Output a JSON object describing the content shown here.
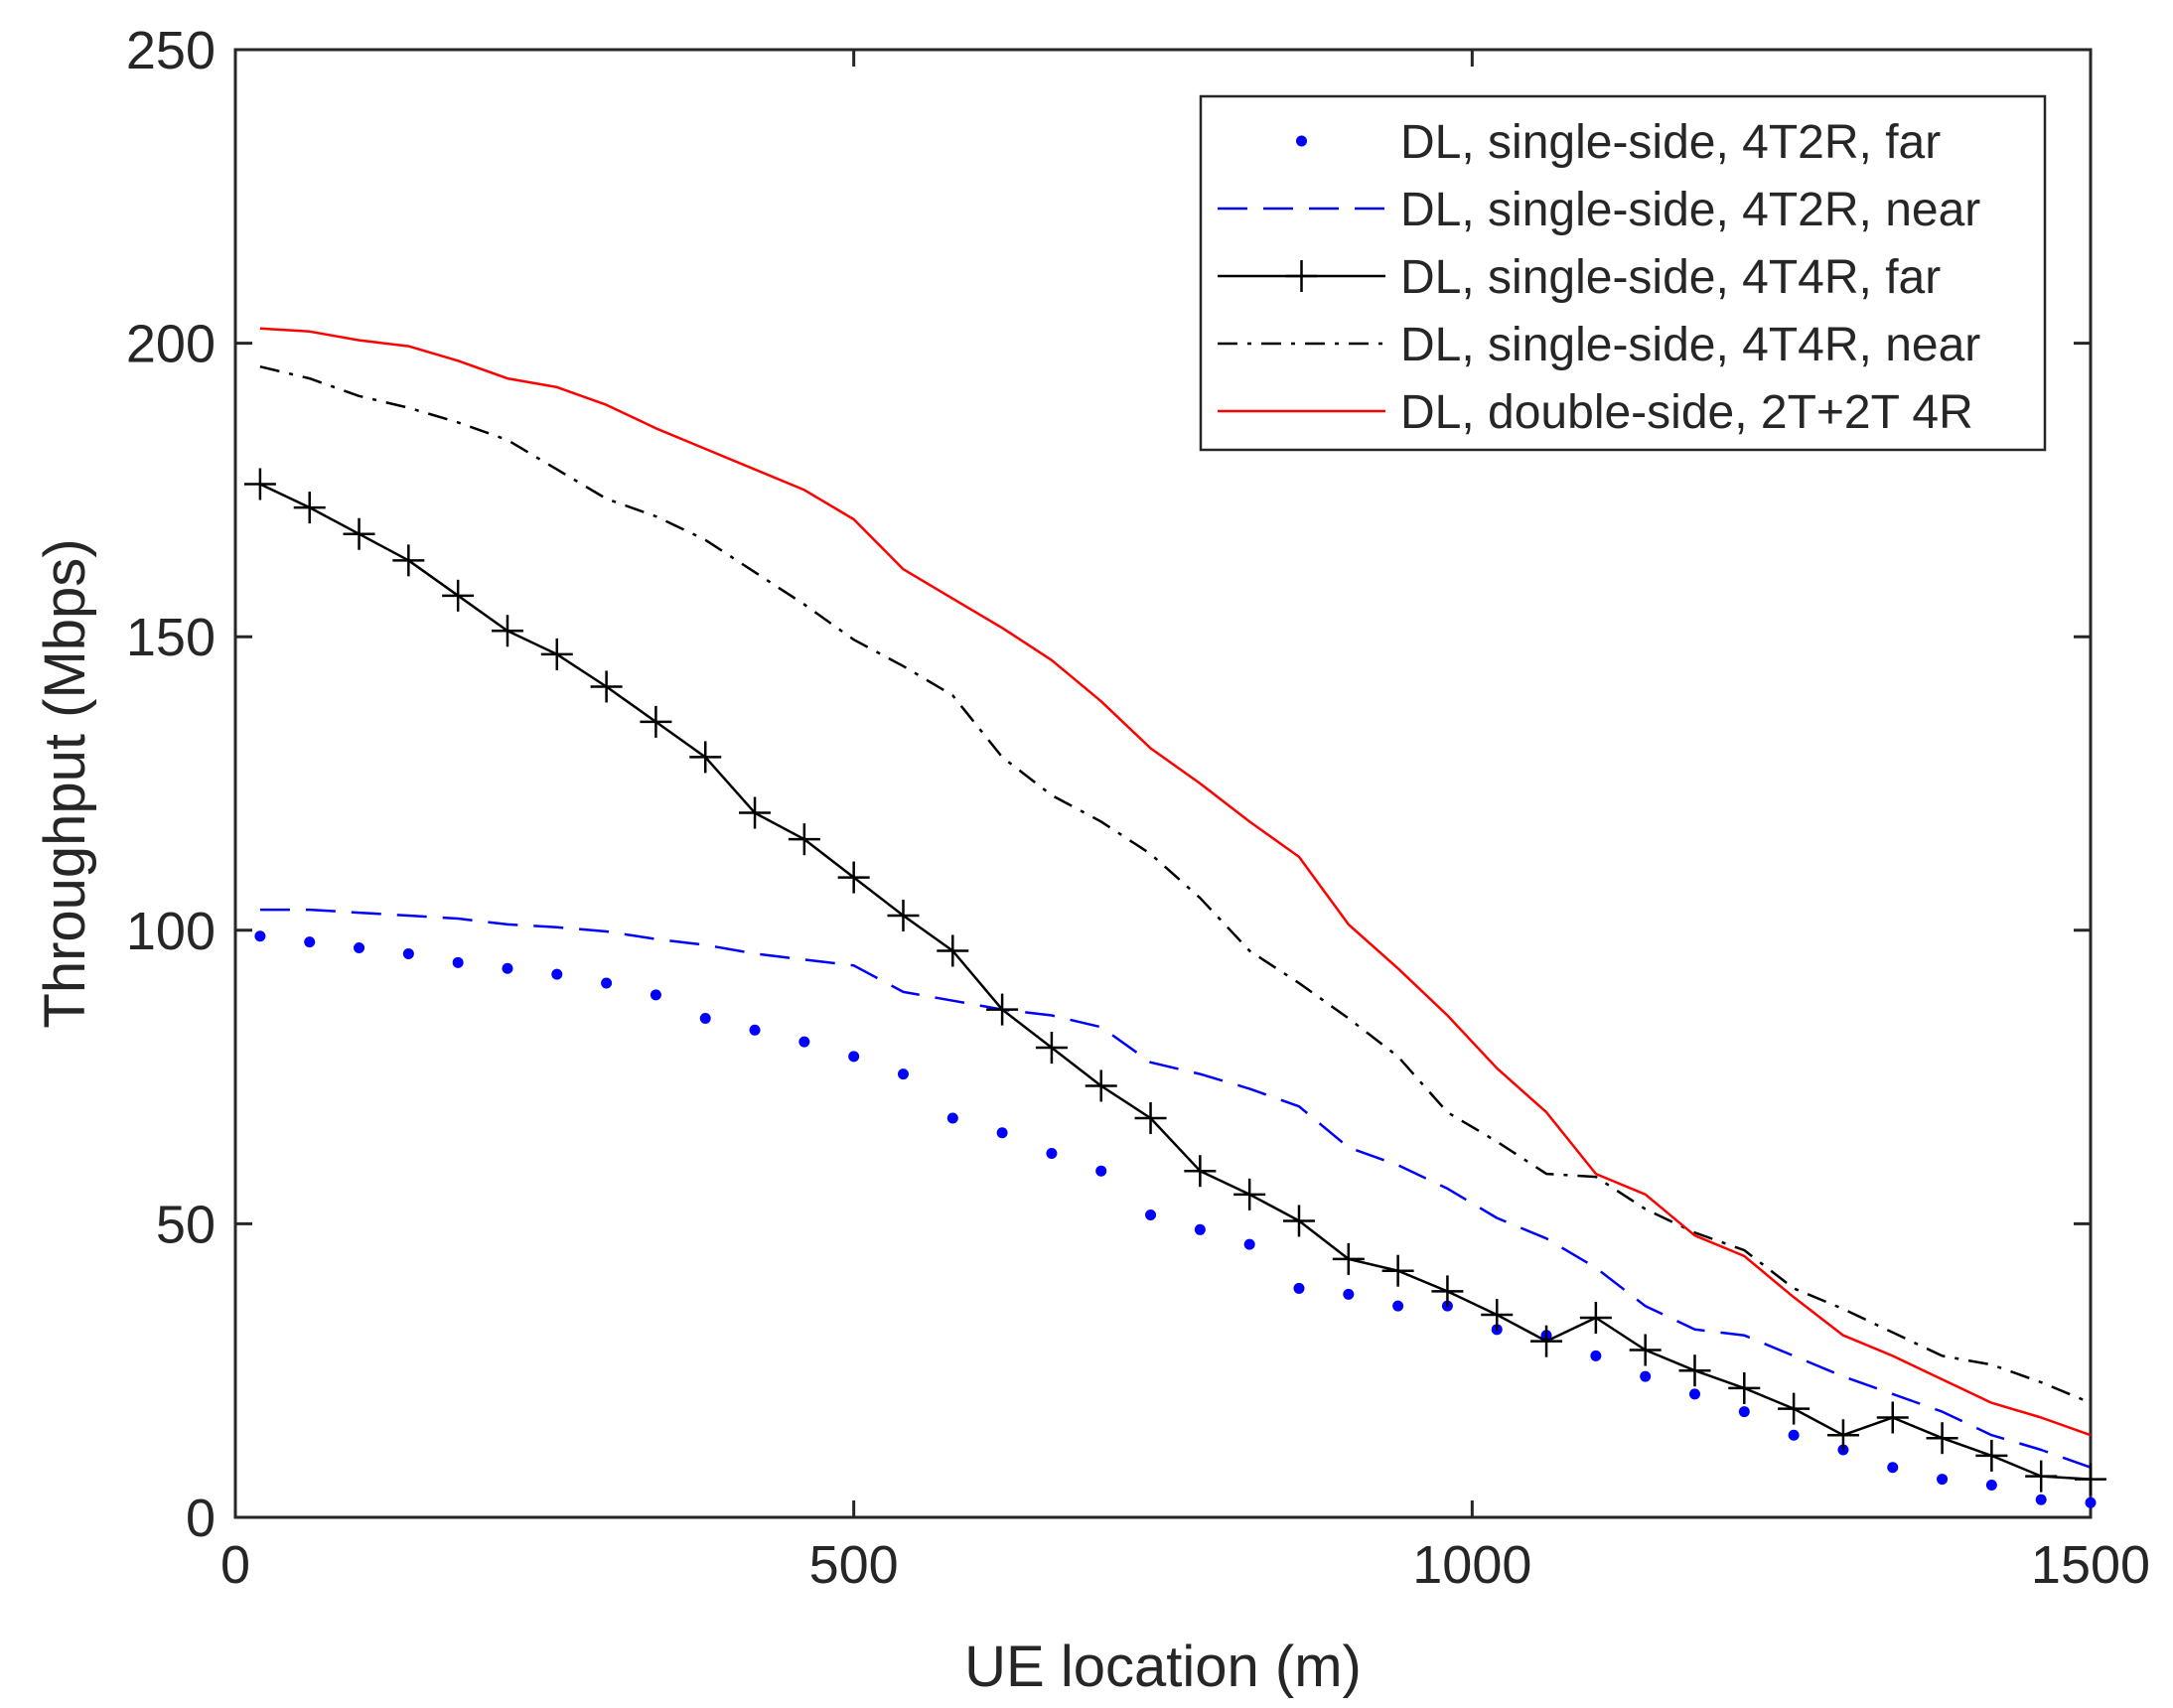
{
  "chart_data": {
    "type": "line",
    "title": "",
    "xlabel": "UE location (m)",
    "ylabel": "Throughput (Mbps)",
    "xlim": [
      0,
      1500
    ],
    "ylim": [
      0,
      250
    ],
    "xticks": [
      0,
      500,
      1000,
      1500
    ],
    "yticks": [
      0,
      50,
      100,
      150,
      200,
      250
    ],
    "grid": false,
    "legend_position": "top-right",
    "series": [
      {
        "name": "DL, single-side, 4T2R, far",
        "color": "#0000ff",
        "style": "dotted-markers",
        "x": [
          20,
          60,
          100,
          140,
          180,
          220,
          260,
          300,
          340,
          380,
          420,
          460,
          500,
          540,
          580,
          620,
          660,
          700,
          740,
          780,
          820,
          860,
          900,
          940,
          980,
          1020,
          1060,
          1100,
          1140,
          1180,
          1220,
          1260,
          1300,
          1340,
          1380,
          1420,
          1460,
          1500
        ],
        "y": [
          99,
          98,
          97,
          96,
          94.5,
          93.5,
          92.5,
          91,
          89,
          85,
          83,
          81,
          78.5,
          75.5,
          68,
          65.5,
          62,
          59,
          51.5,
          49,
          46.5,
          39,
          38,
          36,
          36,
          32,
          31,
          27.5,
          24,
          21,
          18,
          14,
          11.5,
          8.5,
          6.5,
          5.5,
          3,
          2.5
        ]
      },
      {
        "name": "DL, single-side, 4T2R, near",
        "color": "#0000ff",
        "style": "dashed",
        "x": [
          20,
          60,
          100,
          140,
          180,
          220,
          260,
          300,
          340,
          380,
          420,
          460,
          500,
          540,
          580,
          620,
          660,
          700,
          740,
          780,
          820,
          860,
          900,
          940,
          980,
          1020,
          1060,
          1100,
          1140,
          1180,
          1220,
          1260,
          1300,
          1340,
          1380,
          1420,
          1460,
          1500
        ],
        "y": [
          103.5,
          103.5,
          103,
          102.5,
          102,
          101,
          100.5,
          99.8,
          98.5,
          97.5,
          96,
          95,
          94,
          89.5,
          88,
          86.5,
          85.5,
          83.5,
          77.5,
          75.5,
          73,
          70,
          63,
          60,
          56,
          51,
          47.5,
          42.5,
          36,
          32,
          31,
          27.5,
          24,
          21,
          18,
          14,
          11.5,
          8.5
        ]
      },
      {
        "name": "DL, single-side, 4T4R, far",
        "color": "#000000",
        "style": "solid-plus",
        "x": [
          20,
          60,
          100,
          140,
          180,
          220,
          260,
          300,
          340,
          380,
          420,
          460,
          500,
          540,
          580,
          620,
          660,
          700,
          740,
          780,
          820,
          860,
          900,
          940,
          980,
          1020,
          1060,
          1100,
          1140,
          1180,
          1220,
          1260,
          1300,
          1340,
          1380,
          1420,
          1460,
          1500
        ],
        "y": [
          176,
          172,
          167.5,
          163,
          157,
          151,
          147,
          141.5,
          135.5,
          129.5,
          120,
          115.5,
          109,
          102.5,
          96.5,
          86.5,
          80,
          73.5,
          68,
          59,
          55,
          50.5,
          44,
          42,
          38.5,
          34.5,
          30,
          34,
          28.5,
          25,
          22,
          18.5,
          14,
          17,
          13.5,
          10.5,
          7,
          6.5
        ]
      },
      {
        "name": "DL, single-side, 4T4R, near",
        "color": "#000000",
        "style": "dashdot",
        "x": [
          20,
          60,
          100,
          140,
          180,
          220,
          260,
          300,
          340,
          380,
          420,
          460,
          500,
          540,
          580,
          620,
          660,
          700,
          740,
          780,
          820,
          860,
          900,
          940,
          980,
          1020,
          1060,
          1100,
          1140,
          1180,
          1220,
          1260,
          1300,
          1340,
          1380,
          1420,
          1460,
          1500
        ],
        "y": [
          196,
          194,
          191,
          189,
          186.5,
          183.5,
          178.5,
          173.5,
          170.5,
          166.5,
          161,
          155.5,
          149.5,
          145,
          140,
          129.5,
          123,
          118.5,
          113,
          105.5,
          96.5,
          91,
          85,
          78.5,
          69,
          64,
          58.5,
          58,
          52.5,
          48.5,
          45.5,
          39,
          35.5,
          31.5,
          27.5,
          26,
          23,
          19.5
        ]
      },
      {
        "name": "DL, double-side, 2T+2T 4R",
        "color": "#ff0000",
        "style": "solid",
        "x": [
          20,
          60,
          100,
          140,
          180,
          220,
          260,
          300,
          340,
          380,
          420,
          460,
          500,
          540,
          580,
          620,
          660,
          700,
          740,
          780,
          820,
          860,
          900,
          940,
          980,
          1020,
          1060,
          1100,
          1140,
          1180,
          1220,
          1260,
          1300,
          1340,
          1380,
          1420,
          1460,
          1500
        ],
        "y": [
          202.5,
          202,
          200.5,
          199.5,
          197,
          194,
          192.5,
          189.5,
          185.5,
          182,
          178.5,
          175,
          170,
          161.5,
          156.5,
          151.5,
          146,
          139,
          131,
          125,
          118.5,
          112.5,
          101,
          93.5,
          85.5,
          76.5,
          69,
          58.5,
          55,
          48,
          44.5,
          37.5,
          31,
          27.5,
          23.5,
          19.5,
          17,
          14
        ]
      }
    ]
  }
}
